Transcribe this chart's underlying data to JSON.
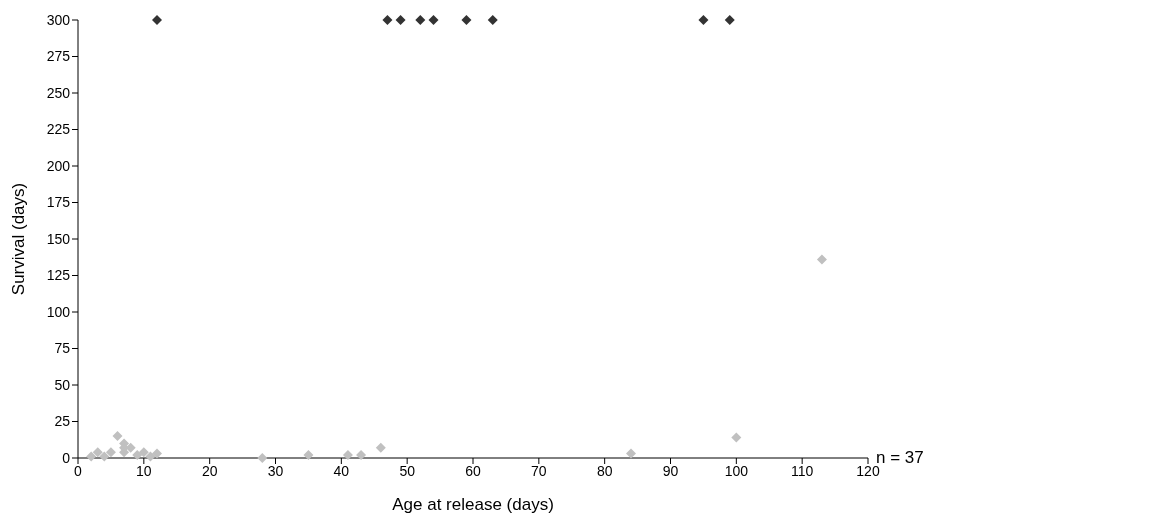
{
  "chart_data": {
    "type": "scatter",
    "xlabel": "Age at release (days)",
    "ylabel": "Survival (days)",
    "annotations": [
      "n = 37"
    ],
    "xlim": [
      0,
      120
    ],
    "xticks": [
      0,
      10,
      20,
      30,
      40,
      50,
      60,
      70,
      80,
      90,
      100,
      110,
      120
    ],
    "ylim": [
      0,
      300
    ],
    "yticks": [
      0,
      25,
      50,
      75,
      100,
      125,
      150,
      175,
      200,
      225,
      250,
      275,
      300
    ],
    "grid": false,
    "marker": "diamond",
    "series": [
      {
        "color": "#333333",
        "x": [
          12,
          47,
          49,
          52,
          54,
          59,
          63,
          95,
          99
        ],
        "values": [
          300,
          300,
          300,
          300,
          300,
          300,
          300,
          300,
          300
        ]
      },
      {
        "color": "#c0c0c0",
        "x": [
          2,
          3,
          4,
          5,
          6,
          7,
          7,
          7,
          8,
          9,
          10,
          11,
          12,
          28,
          35,
          41,
          43,
          46,
          84,
          100,
          113
        ],
        "values": [
          1,
          4,
          1,
          4,
          15,
          10,
          7,
          4,
          7,
          2,
          4,
          1,
          3,
          0,
          2,
          2,
          2,
          7,
          3,
          14,
          136
        ]
      }
    ]
  }
}
